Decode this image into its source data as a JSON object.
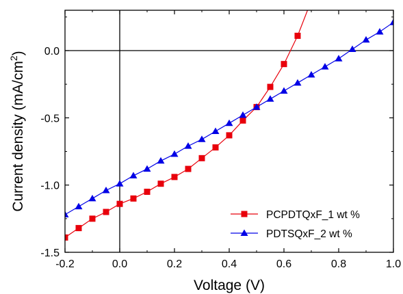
{
  "chart_data": {
    "type": "line",
    "xlabel": "Voltage (V)",
    "ylabel_parts": {
      "main": "Current density (mA/cm",
      "sup": "2",
      "tail": ")"
    },
    "xlim": [
      -0.2,
      1.0
    ],
    "ylim": [
      -1.5,
      0.3
    ],
    "xticks": [
      -0.2,
      0.0,
      0.2,
      0.4,
      0.6,
      0.8,
      1.0
    ],
    "xtick_labels": [
      "-0.2",
      "0.0",
      "0.2",
      "0.4",
      "0.6",
      "0.8",
      "1.0"
    ],
    "yticks": [
      -1.5,
      -1.0,
      -0.5,
      0.0
    ],
    "ytick_labels": [
      "-1.5",
      "-1.0",
      "-0.5",
      "0.0"
    ],
    "grid": false,
    "reference_lines": {
      "x": 0,
      "y": 0
    },
    "legend_position": "bottom-right",
    "series": [
      {
        "name": "PCPDTQxF_1 wt %",
        "color": "#e8000b",
        "marker": "square",
        "x": [
          -0.2,
          -0.15,
          -0.1,
          -0.05,
          0.0,
          0.05,
          0.1,
          0.15,
          0.2,
          0.25,
          0.3,
          0.35,
          0.4,
          0.45,
          0.5,
          0.55,
          0.6,
          0.65
        ],
        "y": [
          -1.39,
          -1.32,
          -1.25,
          -1.2,
          -1.14,
          -1.1,
          -1.05,
          -0.99,
          -0.94,
          -0.88,
          -0.8,
          -0.72,
          -0.63,
          -0.52,
          -0.42,
          -0.27,
          -0.1,
          0.11
        ],
        "line_extension": {
          "x": [
            0.65,
            0.69
          ],
          "y": [
            0.11,
            0.32
          ]
        }
      },
      {
        "name": "PDTSQxF_2 wt %",
        "color": "#0000e6",
        "marker": "triangle",
        "x": [
          -0.2,
          -0.15,
          -0.1,
          -0.05,
          0.0,
          0.05,
          0.1,
          0.15,
          0.2,
          0.25,
          0.3,
          0.35,
          0.4,
          0.45,
          0.5,
          0.55,
          0.6,
          0.65,
          0.7,
          0.75,
          0.8,
          0.85,
          0.9,
          0.95,
          1.0
        ],
        "y": [
          -1.22,
          -1.16,
          -1.1,
          -1.04,
          -0.99,
          -0.93,
          -0.88,
          -0.82,
          -0.77,
          -0.71,
          -0.66,
          -0.6,
          -0.54,
          -0.48,
          -0.42,
          -0.36,
          -0.3,
          -0.24,
          -0.18,
          -0.12,
          -0.06,
          0.01,
          0.08,
          0.14,
          0.21
        ]
      }
    ]
  }
}
